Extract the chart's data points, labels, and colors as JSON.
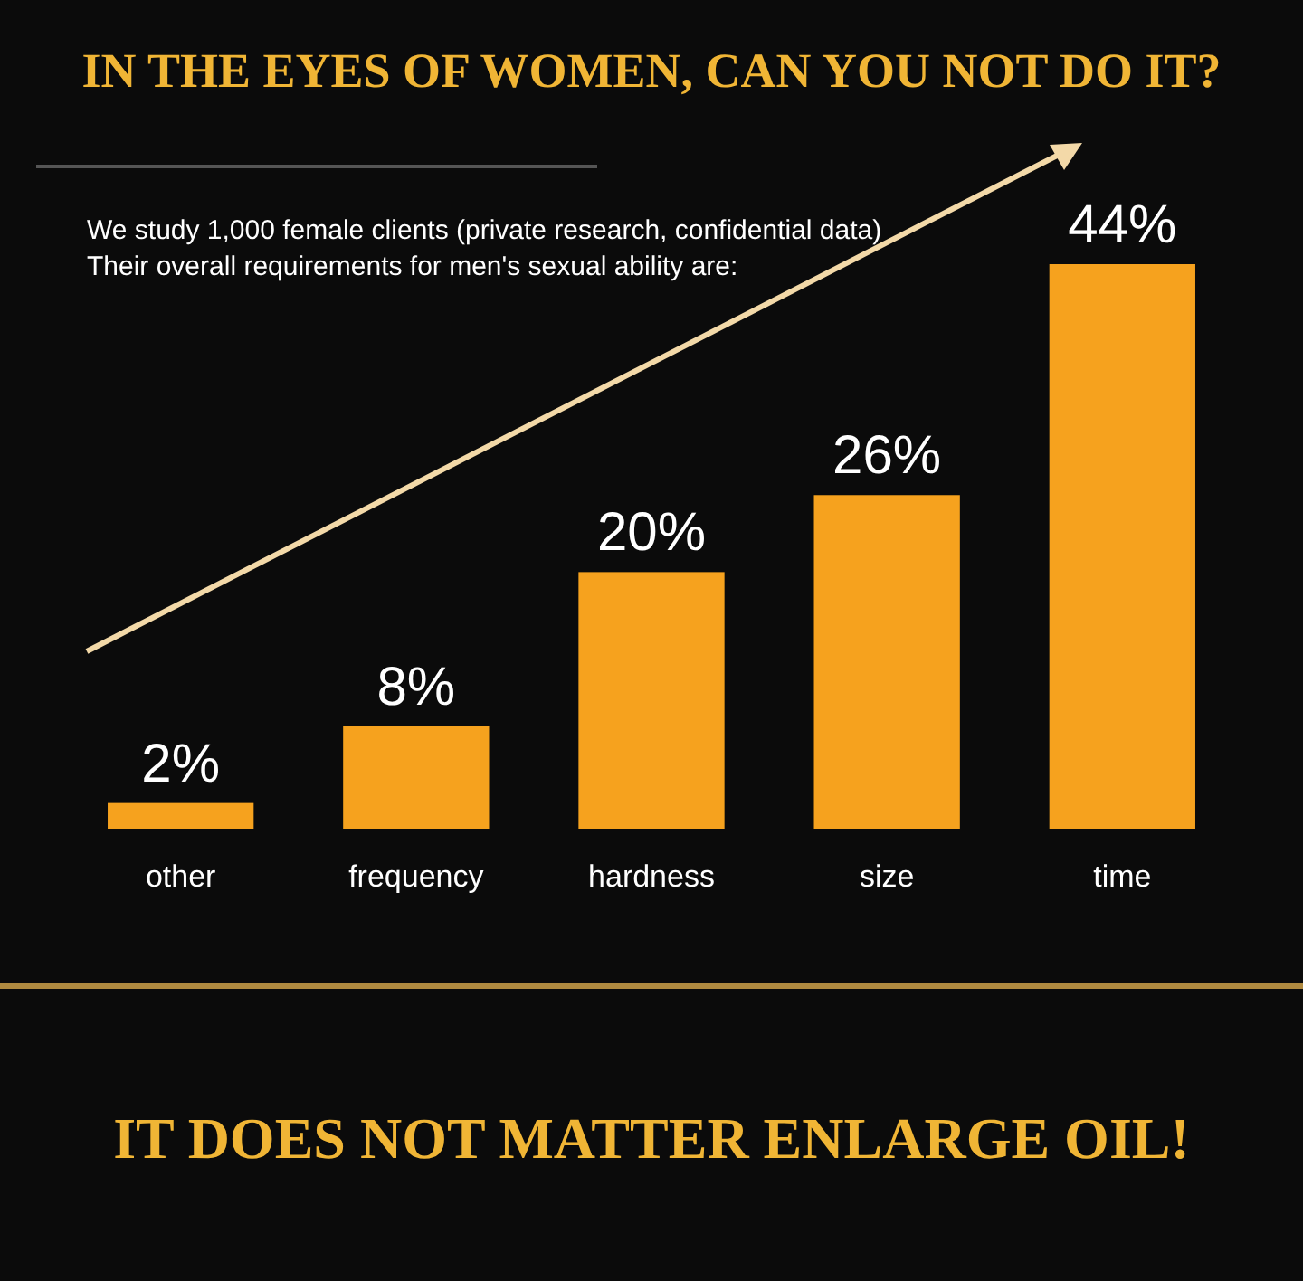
{
  "chart_data": {
    "type": "bar",
    "title": "IN THE EYES OF WOMEN, CAN YOU NOT DO IT?",
    "subtitle": "We study 1,000 female clients (private research, confidential data)\nTheir overall requirements for men's sexual ability are:",
    "categories": [
      "other",
      "frequency",
      "hardness",
      "size",
      "time"
    ],
    "values": [
      2,
      8,
      20,
      26,
      44
    ],
    "value_labels": [
      "2%",
      "8%",
      "20%",
      "26%",
      "44%"
    ],
    "color": "#f6a21e",
    "annotations": [
      "IT DOES NOT MATTER ENLARGE OIL!"
    ]
  }
}
